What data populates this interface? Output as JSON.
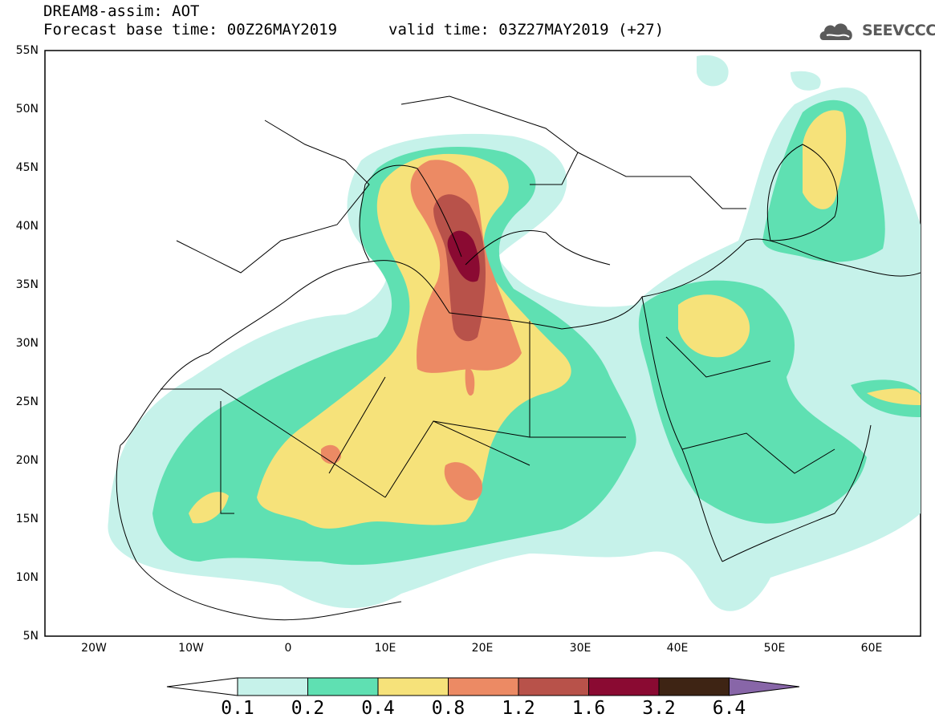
{
  "header": {
    "title": "DREAM8-assim: AOT",
    "base_time": "Forecast base time: 00Z26MAY2019",
    "valid_time": "valid time: 03Z27MAY2019 (+27)"
  },
  "logo": {
    "text": "SEEVCCC",
    "icon": "cloud-logo-icon",
    "color": "#5a5a5a"
  },
  "map": {
    "lon_range": [
      -25,
      65
    ],
    "lat_range": [
      5,
      55
    ],
    "lat_labels": [
      "55N",
      "50N",
      "45N",
      "40N",
      "35N",
      "30N",
      "25N",
      "20N",
      "15N",
      "10N",
      "5N"
    ],
    "lon_labels": [
      "20W",
      "10W",
      "0",
      "10E",
      "20E",
      "30E",
      "40E",
      "50E",
      "60E"
    ]
  },
  "legend": {
    "levels": [
      "0.1",
      "0.2",
      "0.4",
      "0.8",
      "1.2",
      "1.6",
      "3.2",
      "6.4"
    ],
    "colors": [
      "#ffffff",
      "#c6f2ea",
      "#5fe0b2",
      "#f6e27a",
      "#ec8a64",
      "#b8524a",
      "#8a0a32",
      "#3e2414",
      "#8866a8"
    ]
  }
}
